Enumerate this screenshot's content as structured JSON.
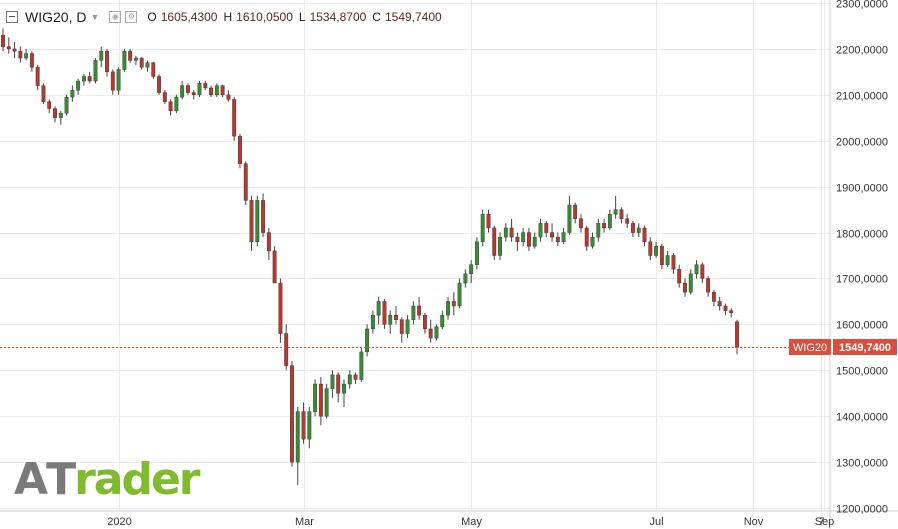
{
  "header": {
    "symbol": "WIG20, D",
    "open_label": "O",
    "open": "1605,4300",
    "high_label": "H",
    "high": "1610,0500",
    "low_label": "L",
    "low": "1534,8700",
    "close_label": "C",
    "close": "1549,7400"
  },
  "logo": {
    "part1": "A",
    "part2": "T",
    "part3": "rader"
  },
  "price_tag": {
    "symbol": "WIG20",
    "value": "1549,7400"
  },
  "colors": {
    "up": "#3a8a35",
    "down": "#b33a2e",
    "tag": "#d94f3d",
    "grid": "#eaeaea"
  },
  "chart_data": {
    "type": "candlestick",
    "series_name": "WIG20",
    "y_ticks": [
      1200,
      1300,
      1400,
      1500,
      1600,
      1700,
      1800,
      1900,
      2000,
      2100,
      2200,
      2300
    ],
    "y_tick_labels": [
      "1200,0000",
      "1300,0000",
      "1400,0000",
      "1500,0000",
      "1600,0000",
      "1700,0000",
      "1800,0000",
      "1900,0000",
      "2000,0000",
      "2100,0000",
      "2200,0000",
      "2300,0000"
    ],
    "ylim": [
      1200,
      2300
    ],
    "x_tick_labels": [
      "2020",
      "Mar",
      "May",
      "Jul",
      "Sep",
      "Nov",
      "7"
    ],
    "last_close": 1549.74,
    "candles": [
      [
        2230,
        2245,
        2195,
        2205
      ],
      [
        2205,
        2225,
        2190,
        2200
      ],
      [
        2200,
        2215,
        2180,
        2195
      ],
      [
        2195,
        2205,
        2170,
        2180
      ],
      [
        2180,
        2200,
        2175,
        2190
      ],
      [
        2190,
        2195,
        2150,
        2160
      ],
      [
        2160,
        2165,
        2110,
        2120
      ],
      [
        2120,
        2125,
        2080,
        2085
      ],
      [
        2085,
        2090,
        2060,
        2070
      ],
      [
        2070,
        2075,
        2040,
        2050
      ],
      [
        2050,
        2065,
        2035,
        2060
      ],
      [
        2060,
        2100,
        2055,
        2095
      ],
      [
        2095,
        2120,
        2085,
        2110
      ],
      [
        2110,
        2135,
        2100,
        2130
      ],
      [
        2130,
        2145,
        2120,
        2140
      ],
      [
        2140,
        2150,
        2125,
        2130
      ],
      [
        2130,
        2180,
        2125,
        2175
      ],
      [
        2175,
        2205,
        2160,
        2195
      ],
      [
        2195,
        2200,
        2140,
        2150
      ],
      [
        2150,
        2155,
        2100,
        2110
      ],
      [
        2110,
        2160,
        2100,
        2155
      ],
      [
        2155,
        2200,
        2150,
        2195
      ],
      [
        2195,
        2200,
        2170,
        2175
      ],
      [
        2175,
        2185,
        2165,
        2180
      ],
      [
        2180,
        2182,
        2155,
        2160
      ],
      [
        2160,
        2175,
        2150,
        2170
      ],
      [
        2170,
        2172,
        2135,
        2140
      ],
      [
        2140,
        2145,
        2100,
        2105
      ],
      [
        2105,
        2110,
        2080,
        2085
      ],
      [
        2085,
        2090,
        2055,
        2065
      ],
      [
        2065,
        2100,
        2060,
        2095
      ],
      [
        2095,
        2130,
        2090,
        2120
      ],
      [
        2120,
        2125,
        2100,
        2105
      ],
      [
        2105,
        2110,
        2090,
        2100
      ],
      [
        2100,
        2130,
        2095,
        2125
      ],
      [
        2125,
        2130,
        2110,
        2115
      ],
      [
        2115,
        2120,
        2095,
        2100
      ],
      [
        2100,
        2125,
        2095,
        2120
      ],
      [
        2120,
        2122,
        2095,
        2100
      ],
      [
        2100,
        2110,
        2085,
        2090
      ],
      [
        2090,
        2095,
        2000,
        2010
      ],
      [
        2010,
        2015,
        1940,
        1950
      ],
      [
        1950,
        1955,
        1860,
        1870
      ],
      [
        1870,
        1880,
        1760,
        1780
      ],
      [
        1780,
        1880,
        1770,
        1870
      ],
      [
        1870,
        1885,
        1790,
        1800
      ],
      [
        1800,
        1810,
        1740,
        1760
      ],
      [
        1760,
        1770,
        1700,
        1690
      ],
      [
        1690,
        1700,
        1560,
        1580
      ],
      [
        1580,
        1600,
        1500,
        1510
      ],
      [
        1510,
        1520,
        1290,
        1300
      ],
      [
        1300,
        1420,
        1250,
        1410
      ],
      [
        1410,
        1430,
        1340,
        1350
      ],
      [
        1350,
        1420,
        1330,
        1410
      ],
      [
        1410,
        1480,
        1400,
        1470
      ],
      [
        1470,
        1485,
        1380,
        1400
      ],
      [
        1400,
        1470,
        1395,
        1460
      ],
      [
        1460,
        1500,
        1440,
        1490
      ],
      [
        1490,
        1495,
        1430,
        1450
      ],
      [
        1450,
        1480,
        1420,
        1470
      ],
      [
        1470,
        1500,
        1460,
        1490
      ],
      [
        1490,
        1495,
        1470,
        1480
      ],
      [
        1480,
        1550,
        1475,
        1540
      ],
      [
        1540,
        1600,
        1530,
        1590
      ],
      [
        1590,
        1630,
        1580,
        1620
      ],
      [
        1620,
        1660,
        1600,
        1650
      ],
      [
        1650,
        1655,
        1590,
        1600
      ],
      [
        1600,
        1630,
        1580,
        1620
      ],
      [
        1620,
        1640,
        1600,
        1610
      ],
      [
        1610,
        1615,
        1560,
        1580
      ],
      [
        1580,
        1620,
        1570,
        1610
      ],
      [
        1610,
        1650,
        1600,
        1640
      ],
      [
        1640,
        1660,
        1610,
        1620
      ],
      [
        1620,
        1625,
        1580,
        1590
      ],
      [
        1590,
        1610,
        1560,
        1570
      ],
      [
        1570,
        1600,
        1565,
        1595
      ],
      [
        1595,
        1630,
        1590,
        1620
      ],
      [
        1620,
        1660,
        1610,
        1650
      ],
      [
        1650,
        1670,
        1620,
        1640
      ],
      [
        1640,
        1700,
        1635,
        1690
      ],
      [
        1690,
        1720,
        1680,
        1710
      ],
      [
        1710,
        1740,
        1690,
        1730
      ],
      [
        1730,
        1790,
        1720,
        1780
      ],
      [
        1780,
        1850,
        1770,
        1840
      ],
      [
        1840,
        1850,
        1800,
        1810
      ],
      [
        1810,
        1815,
        1740,
        1750
      ],
      [
        1750,
        1800,
        1740,
        1790
      ],
      [
        1790,
        1820,
        1780,
        1810
      ],
      [
        1810,
        1830,
        1780,
        1790
      ],
      [
        1790,
        1800,
        1760,
        1780
      ],
      [
        1780,
        1810,
        1770,
        1800
      ],
      [
        1800,
        1810,
        1760,
        1770
      ],
      [
        1770,
        1800,
        1765,
        1790
      ],
      [
        1790,
        1830,
        1780,
        1820
      ],
      [
        1820,
        1825,
        1790,
        1800
      ],
      [
        1800,
        1820,
        1780,
        1790
      ],
      [
        1790,
        1800,
        1770,
        1780
      ],
      [
        1780,
        1810,
        1775,
        1800
      ],
      [
        1800,
        1880,
        1795,
        1860
      ],
      [
        1860,
        1865,
        1820,
        1830
      ],
      [
        1830,
        1840,
        1800,
        1810
      ],
      [
        1810,
        1815,
        1760,
        1770
      ],
      [
        1770,
        1800,
        1765,
        1790
      ],
      [
        1790,
        1830,
        1780,
        1820
      ],
      [
        1820,
        1830,
        1800,
        1810
      ],
      [
        1810,
        1850,
        1805,
        1840
      ],
      [
        1840,
        1880,
        1830,
        1850
      ],
      [
        1850,
        1855,
        1820,
        1830
      ],
      [
        1830,
        1840,
        1810,
        1820
      ],
      [
        1820,
        1825,
        1790,
        1800
      ],
      [
        1800,
        1820,
        1790,
        1810
      ],
      [
        1810,
        1815,
        1770,
        1780
      ],
      [
        1780,
        1790,
        1740,
        1750
      ],
      [
        1750,
        1780,
        1745,
        1770
      ],
      [
        1770,
        1775,
        1720,
        1730
      ],
      [
        1730,
        1760,
        1725,
        1750
      ],
      [
        1750,
        1755,
        1710,
        1720
      ],
      [
        1720,
        1730,
        1680,
        1690
      ],
      [
        1690,
        1700,
        1660,
        1670
      ],
      [
        1670,
        1720,
        1665,
        1710
      ],
      [
        1710,
        1740,
        1700,
        1730
      ],
      [
        1730,
        1735,
        1690,
        1700
      ],
      [
        1700,
        1705,
        1660,
        1670
      ],
      [
        1670,
        1675,
        1640,
        1650
      ],
      [
        1650,
        1660,
        1630,
        1640
      ],
      [
        1640,
        1645,
        1620,
        1630
      ],
      [
        1630,
        1635,
        1615,
        1625
      ],
      [
        1605.43,
        1610.05,
        1534.87,
        1549.74
      ]
    ]
  }
}
